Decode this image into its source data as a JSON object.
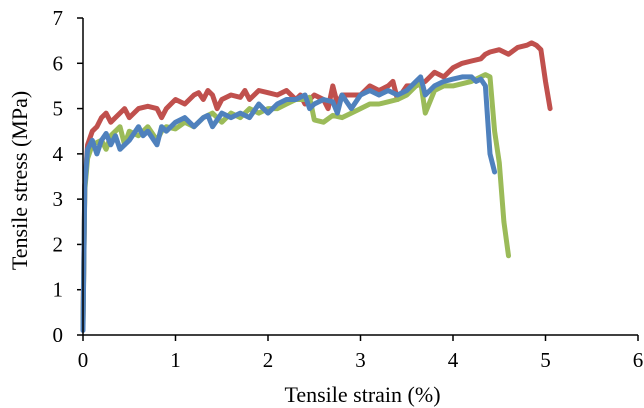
{
  "chart_data": {
    "type": "line",
    "title": "",
    "xlabel": "Tensile strain (%)",
    "ylabel": "Tensile stress (MPa)",
    "xlim": [
      0,
      6
    ],
    "ylim": [
      0,
      7
    ],
    "xticks": [
      "0",
      "1",
      "2",
      "3",
      "4",
      "5",
      "6"
    ],
    "yticks": [
      "0",
      "1",
      "2",
      "3",
      "4",
      "5",
      "6",
      "7"
    ],
    "grid": false,
    "legend": "none",
    "series": [
      {
        "color": "#c0504d",
        "x": [
          0.0,
          0.02,
          0.05,
          0.1,
          0.15,
          0.2,
          0.25,
          0.3,
          0.35,
          0.4,
          0.45,
          0.5,
          0.55,
          0.6,
          0.7,
          0.8,
          0.85,
          0.9,
          0.95,
          1.0,
          1.1,
          1.2,
          1.25,
          1.3,
          1.35,
          1.4,
          1.45,
          1.5,
          1.6,
          1.7,
          1.75,
          1.8,
          1.9,
          2.0,
          2.1,
          2.2,
          2.3,
          2.35,
          2.4,
          2.45,
          2.5,
          2.6,
          2.65,
          2.7,
          2.75,
          2.8,
          2.9,
          3.0,
          3.1,
          3.2,
          3.3,
          3.35,
          3.4,
          3.5,
          3.6,
          3.7,
          3.75,
          3.8,
          3.9,
          4.0,
          4.1,
          4.2,
          4.3,
          4.35,
          4.4,
          4.5,
          4.6,
          4.7,
          4.8,
          4.85,
          4.9,
          4.95,
          5.0,
          5.05
        ],
        "y": [
          0.3,
          3.3,
          4.2,
          4.5,
          4.6,
          4.8,
          4.9,
          4.7,
          4.8,
          4.9,
          5.0,
          4.8,
          4.9,
          5.0,
          5.05,
          5.0,
          4.8,
          5.0,
          5.1,
          5.2,
          5.1,
          5.3,
          5.35,
          5.2,
          5.4,
          5.3,
          5.0,
          5.2,
          5.3,
          5.25,
          5.4,
          5.2,
          5.4,
          5.35,
          5.3,
          5.4,
          5.2,
          5.3,
          5.1,
          5.2,
          5.3,
          5.2,
          5.0,
          5.5,
          5.1,
          5.3,
          5.3,
          5.3,
          5.5,
          5.4,
          5.5,
          5.6,
          5.2,
          5.5,
          5.5,
          5.6,
          5.7,
          5.8,
          5.7,
          5.9,
          6.0,
          6.05,
          6.1,
          6.2,
          6.25,
          6.3,
          6.2,
          6.35,
          6.4,
          6.45,
          6.4,
          6.3,
          5.6,
          5.0
        ]
      },
      {
        "color": "#9bbb59",
        "x": [
          0.0,
          0.02,
          0.05,
          0.1,
          0.2,
          0.25,
          0.3,
          0.4,
          0.45,
          0.5,
          0.6,
          0.7,
          0.8,
          0.85,
          0.9,
          1.0,
          1.1,
          1.2,
          1.3,
          1.4,
          1.5,
          1.6,
          1.7,
          1.8,
          1.9,
          2.0,
          2.1,
          2.2,
          2.3,
          2.4,
          2.45,
          2.5,
          2.6,
          2.7,
          2.8,
          2.9,
          3.0,
          3.1,
          3.2,
          3.3,
          3.4,
          3.5,
          3.6,
          3.65,
          3.7,
          3.8,
          3.9,
          4.0,
          4.1,
          4.2,
          4.3,
          4.35,
          4.4,
          4.45,
          4.5,
          4.55,
          4.6
        ],
        "y": [
          0.2,
          3.2,
          3.9,
          4.2,
          4.3,
          4.1,
          4.4,
          4.6,
          4.2,
          4.5,
          4.4,
          4.6,
          4.3,
          4.5,
          4.6,
          4.55,
          4.7,
          4.6,
          4.8,
          4.9,
          4.7,
          4.9,
          4.8,
          5.0,
          4.9,
          5.0,
          5.0,
          5.1,
          5.2,
          5.2,
          5.25,
          4.75,
          4.7,
          4.85,
          4.8,
          4.9,
          5.0,
          5.1,
          5.1,
          5.15,
          5.2,
          5.3,
          5.5,
          5.6,
          4.9,
          5.4,
          5.5,
          5.5,
          5.55,
          5.6,
          5.7,
          5.75,
          5.7,
          4.5,
          3.8,
          2.5,
          1.75
        ]
      },
      {
        "color": "#4f81bd",
        "x": [
          0.0,
          0.02,
          0.05,
          0.1,
          0.15,
          0.2,
          0.25,
          0.3,
          0.35,
          0.4,
          0.45,
          0.5,
          0.6,
          0.65,
          0.7,
          0.8,
          0.85,
          0.9,
          1.0,
          1.1,
          1.2,
          1.3,
          1.35,
          1.4,
          1.5,
          1.6,
          1.7,
          1.8,
          1.9,
          2.0,
          2.1,
          2.2,
          2.3,
          2.4,
          2.45,
          2.5,
          2.6,
          2.7,
          2.75,
          2.8,
          2.9,
          3.0,
          3.1,
          3.2,
          3.3,
          3.4,
          3.5,
          3.6,
          3.65,
          3.7,
          3.8,
          3.9,
          4.0,
          4.1,
          4.2,
          4.25,
          4.3,
          4.35,
          4.4,
          4.45
        ],
        "y": [
          0.1,
          3.3,
          4.1,
          4.3,
          4.0,
          4.3,
          4.45,
          4.2,
          4.4,
          4.1,
          4.2,
          4.3,
          4.6,
          4.4,
          4.5,
          4.2,
          4.6,
          4.5,
          4.7,
          4.8,
          4.6,
          4.8,
          4.85,
          4.6,
          4.9,
          4.8,
          4.9,
          4.8,
          5.1,
          4.9,
          5.1,
          5.2,
          5.2,
          5.3,
          5.0,
          5.1,
          5.2,
          5.15,
          4.9,
          5.3,
          5.0,
          5.3,
          5.4,
          5.3,
          5.4,
          5.3,
          5.4,
          5.6,
          5.7,
          5.3,
          5.5,
          5.6,
          5.65,
          5.7,
          5.7,
          5.6,
          5.65,
          5.5,
          4.0,
          3.6
        ]
      }
    ]
  }
}
